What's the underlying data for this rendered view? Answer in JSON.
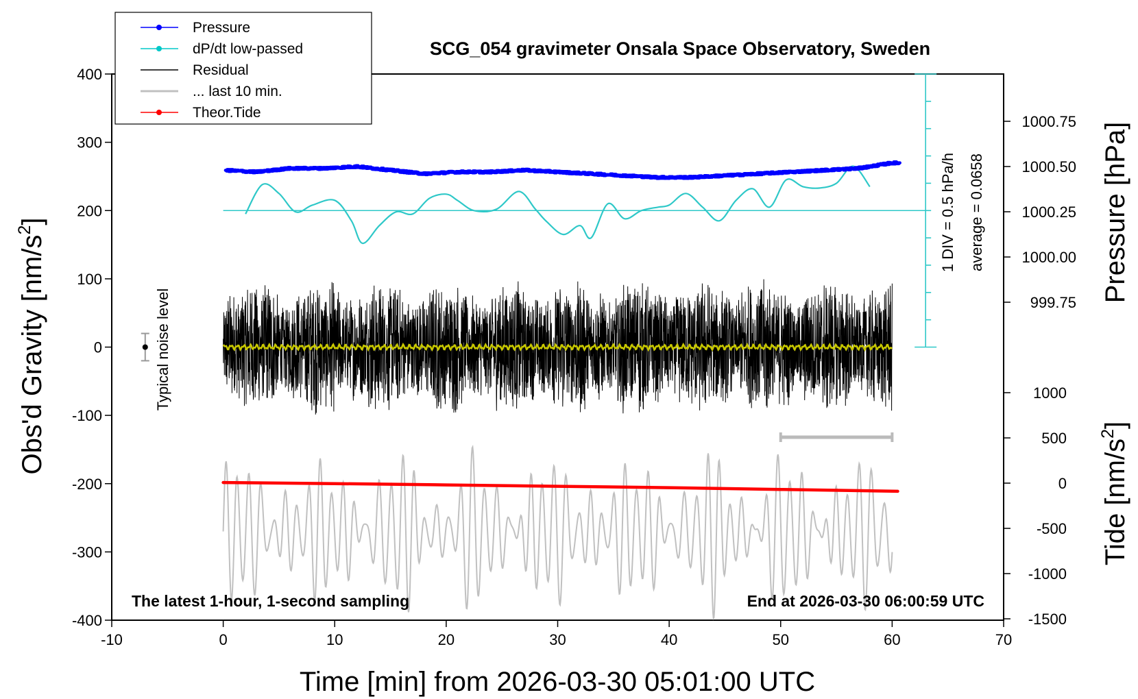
{
  "title": "SCG_054 gravimeter Onsala Space Observatory, Sweden",
  "bottom_left_note": "The latest 1-hour, 1-second sampling",
  "bottom_right_note": "End at 2026-03-30 06:00:59 UTC",
  "noise_label": "Typical noise level",
  "scale_bar_label": "1 DIV = 0.5 hPa/h",
  "average_label": "average = 0.0658",
  "chart_data": {
    "type": "line",
    "xlabel": "Time [min] from 2026-03-30 05:01:00 UTC",
    "ylabel_left": "Obs'd Gravity [nm/s",
    "ylabel_left_sup": "2",
    "ylabel_left_end": "]",
    "ylabel_right_pressure": "Pressure [hPa]",
    "ylabel_right_tide": "Tide [nm/s",
    "ylabel_right_tide_sup": "2",
    "ylabel_right_tide_end": "]",
    "xlim": [
      -10,
      70
    ],
    "ylim": [
      -400,
      400
    ],
    "x_ticks": [
      "-10",
      "0",
      "10",
      "20",
      "30",
      "40",
      "50",
      "60",
      "70"
    ],
    "y_ticks": [
      "-400",
      "-300",
      "-200",
      "-100",
      "0",
      "100",
      "200",
      "300",
      "400"
    ],
    "pressure_ticks": [
      "999.75",
      "1000.00",
      "1000.25",
      "1000.50",
      "1000.75"
    ],
    "tide_ticks": [
      "-1500",
      "-1000",
      "-500",
      "0",
      "500",
      "1000"
    ],
    "legend": [
      {
        "label": "Pressure",
        "color": "#0000ff",
        "marker": true
      },
      {
        "label": "dP/dt low-passed",
        "color": "#00c8c8",
        "marker": true
      },
      {
        "label": "Residual",
        "color": "#000000",
        "marker": false
      },
      {
        "label": "... last 10 min.",
        "color": "#c0c0c0",
        "marker": false
      },
      {
        "label": "Theor.Tide",
        "color": "#ff0000",
        "marker": true
      }
    ],
    "colors": {
      "pressure": "#0000ff",
      "dpdt": "#2ec8c8",
      "residual": "#000000",
      "last10": "#c0c0c0",
      "tide": "#ff0000",
      "lowpass_residual": "#c8c800"
    },
    "pressure_series": {
      "x": [
        0,
        3,
        6,
        9,
        12,
        15,
        18,
        21,
        24,
        27,
        30,
        33,
        36,
        39,
        42,
        45,
        48,
        51,
        54,
        57,
        60
      ],
      "y": [
        1000.48,
        1000.47,
        1000.49,
        1000.49,
        1000.5,
        1000.48,
        1000.46,
        1000.47,
        1000.47,
        1000.48,
        1000.47,
        1000.46,
        1000.45,
        1000.44,
        1000.44,
        1000.45,
        1000.46,
        1000.47,
        1000.48,
        1000.49,
        1000.52
      ]
    },
    "dpdt_series": {
      "baseline_gravity_units": 200,
      "x": [
        2,
        3.5,
        5,
        6.5,
        8,
        10,
        11.5,
        12.5,
        14,
        15.5,
        17,
        18.5,
        20,
        21,
        22.5,
        24.5,
        26.5,
        28,
        29,
        30.5,
        32,
        33,
        34.5,
        36,
        37.5,
        39,
        40,
        41.5,
        43,
        44.5,
        46,
        47.5,
        49,
        50.5,
        52,
        53.5,
        55,
        56.5,
        58
      ],
      "y": [
        195,
        238,
        225,
        198,
        208,
        215,
        185,
        152,
        178,
        198,
        195,
        218,
        224,
        215,
        200,
        202,
        228,
        202,
        184,
        165,
        178,
        160,
        210,
        188,
        200,
        205,
        208,
        225,
        205,
        185,
        215,
        232,
        205,
        245,
        235,
        233,
        240,
        265,
        235
      ]
    },
    "tide_series": {
      "x": [
        0,
        10,
        20,
        30,
        40,
        50,
        60.5
      ],
      "y": [
        7,
        -5,
        -20,
        -35,
        -50,
        -70,
        -90
      ]
    },
    "noise_level": {
      "x": -7,
      "y": 0,
      "range": 20
    },
    "scale_bar": {
      "x": 63,
      "min_y": 0,
      "max_y": 400,
      "step_y": 40
    }
  }
}
